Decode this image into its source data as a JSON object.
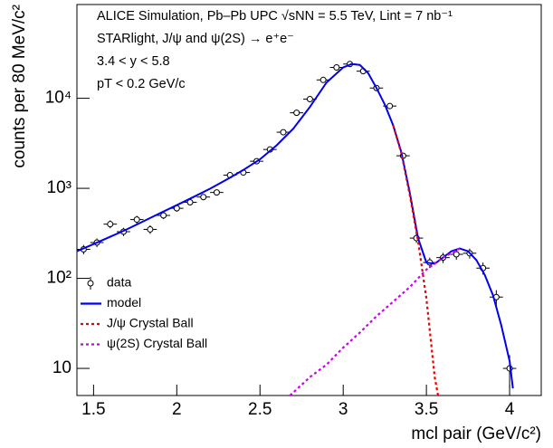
{
  "chart_data": {
    "type": "scatter",
    "annotations": [
      "ALICE Simulation, Pb–Pb UPC √sNN = 5.5 TeV, Lint = 7 nb⁻¹",
      "STARlight, J/ψ and ψ(2S) → e⁺e⁻",
      "3.4 < y < 5.8",
      "pT < 0.2 GeV/c"
    ],
    "xlabel": "mcl pair (GeV/c²)",
    "ylabel": "counts per 80 MeV/c²",
    "xlim": [
      1.4,
      4.19
    ],
    "xticks": [
      {
        "value": 1.5,
        "label": "1.5"
      },
      2,
      {
        "value": 2.5,
        "label": "2.5"
      },
      3,
      {
        "value": 3.5,
        "label": "3.5"
      },
      4
    ],
    "ylim": [
      5,
      110000
    ],
    "yticks": [
      10,
      {
        "value": 100,
        "label": "10²"
      },
      {
        "value": 1000,
        "label": "10³"
      },
      {
        "value": 10000,
        "label": "10⁴"
      }
    ],
    "log_y": true,
    "legend": "bottom-left",
    "bin_width": 0.08,
    "series": [
      {
        "name": "data",
        "color": "#000000",
        "marker": "circle",
        "x": [
          1.44,
          1.52,
          1.6,
          1.68,
          1.76,
          1.84,
          1.92,
          2.0,
          2.08,
          2.16,
          2.24,
          2.32,
          2.4,
          2.48,
          2.56,
          2.64,
          2.72,
          2.8,
          2.88,
          2.96,
          3.04,
          3.12,
          3.2,
          3.28,
          3.36,
          3.44,
          3.52,
          3.6,
          3.68,
          3.76,
          3.84,
          3.92,
          4.0
        ],
        "values": [
          210,
          250,
          400,
          330,
          450,
          350,
          500,
          600,
          700,
          800,
          900,
          1400,
          1500,
          2000,
          2700,
          4200,
          6900,
          9800,
          16000,
          22000,
          24000,
          20000,
          13000,
          8200,
          2300,
          280,
          150,
          170,
          185,
          190,
          130,
          62,
          10
        ],
        "errors": [
          25,
          28,
          40,
          35,
          45,
          38,
          45,
          50,
          55,
          60,
          65,
          80,
          80,
          90,
          105,
          130,
          170,
          200,
          250,
          300,
          310,
          280,
          230,
          180,
          95,
          32,
          20,
          22,
          24,
          24,
          20,
          12,
          4
        ]
      },
      {
        "name": "model",
        "color": "#0000ee",
        "line_style": "solid",
        "x": [
          1.4,
          1.5,
          1.6,
          1.7,
          1.8,
          1.9,
          2.0,
          2.1,
          2.2,
          2.3,
          2.4,
          2.5,
          2.6,
          2.7,
          2.8,
          2.9,
          3.0,
          3.05,
          3.1,
          3.15,
          3.2,
          3.25,
          3.3,
          3.35,
          3.4,
          3.45,
          3.5,
          3.55,
          3.6,
          3.65,
          3.7,
          3.75,
          3.8,
          3.85,
          3.9,
          3.95,
          4.0,
          4.02
        ],
        "values": [
          200,
          240,
          290,
          350,
          430,
          530,
          650,
          800,
          990,
          1250,
          1600,
          2100,
          3000,
          4600,
          8000,
          15000,
          22000,
          24000,
          23500,
          19000,
          13000,
          8500,
          5000,
          2500,
          900,
          280,
          150,
          145,
          170,
          200,
          215,
          200,
          160,
          110,
          65,
          30,
          12,
          6
        ]
      },
      {
        "name": "J/ψ Crystal Ball",
        "color": "#ee0000",
        "line_style": "dotted",
        "x": [
          3.3,
          3.35,
          3.4,
          3.45,
          3.5,
          3.55,
          3.57
        ],
        "values": [
          5000,
          2450,
          850,
          260,
          60,
          8,
          5
        ]
      },
      {
        "name": "ψ(2S) Crystal Ball",
        "color": "#cc00ee",
        "line_style": "dotted",
        "x": [
          2.68,
          2.8,
          2.9,
          3.0,
          3.1,
          3.2,
          3.3,
          3.4,
          3.5,
          3.6,
          3.7
        ],
        "values": [
          5,
          8,
          11,
          17,
          25,
          38,
          55,
          80,
          125,
          170,
          215
        ]
      }
    ]
  }
}
